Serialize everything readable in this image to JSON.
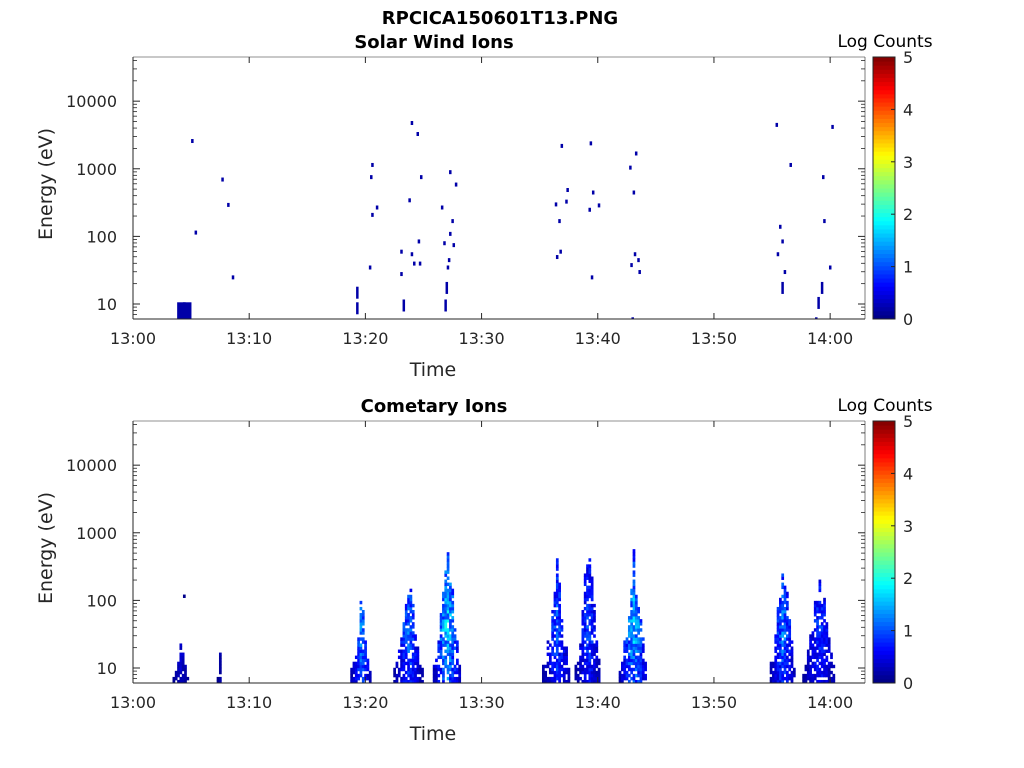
{
  "figure_title": "RPCICA150601T13.PNG",
  "chart_data": [
    {
      "type": "heatmap",
      "title": "Solar Wind Ions",
      "xlabel": "Time",
      "ylabel": "Energy (eV)",
      "x_ticks": [
        "13:00",
        "13:10",
        "13:20",
        "13:30",
        "13:40",
        "13:50",
        "14:00"
      ],
      "y_ticks": [
        "10",
        "100",
        "1000",
        "10000"
      ],
      "y_scale": "log",
      "y_range": [
        6,
        45000
      ],
      "x_range_minutes": [
        0,
        63
      ],
      "colorbar": {
        "label": "Log Counts",
        "ticks": [
          "0",
          "1",
          "2",
          "3",
          "4",
          "5"
        ],
        "range": [
          0,
          5
        ]
      },
      "cells": [
        [
          3.8,
          10,
          0.2
        ],
        [
          4.3,
          10,
          0.2
        ],
        [
          4.1,
          7,
          0.2
        ],
        [
          5.0,
          2600,
          0.2
        ],
        [
          5.3,
          115,
          0.2
        ],
        [
          7.6,
          700,
          0.2
        ],
        [
          8.1,
          295,
          0.2
        ],
        [
          8.5,
          25,
          0.2
        ],
        [
          19.2,
          17,
          0.2
        ],
        [
          19.2,
          10,
          0.2
        ],
        [
          20.3,
          35,
          0.2
        ],
        [
          20.4,
          760,
          0.2
        ],
        [
          20.5,
          1150,
          0.2
        ],
        [
          20.5,
          210,
          0.2
        ],
        [
          20.9,
          270,
          0.2
        ],
        [
          23.0,
          60,
          0.2
        ],
        [
          23.0,
          28,
          0.2
        ],
        [
          23.2,
          11,
          0.2
        ],
        [
          23.7,
          345,
          0.2
        ],
        [
          23.9,
          4800,
          0.2
        ],
        [
          23.9,
          55,
          0.2
        ],
        [
          24.1,
          40,
          0.2
        ],
        [
          24.4,
          3300,
          0.2
        ],
        [
          24.5,
          85,
          0.2
        ],
        [
          24.7,
          760,
          0.2
        ],
        [
          24.6,
          40,
          0.2
        ],
        [
          26.5,
          270,
          0.2
        ],
        [
          26.7,
          80,
          0.2
        ],
        [
          26.8,
          11,
          0.2
        ],
        [
          26.9,
          20,
          0.2
        ],
        [
          27.0,
          35,
          0.2
        ],
        [
          27.1,
          45,
          0.2
        ],
        [
          27.2,
          110,
          0.2
        ],
        [
          27.2,
          900,
          0.2
        ],
        [
          27.4,
          170,
          0.2
        ],
        [
          27.5,
          75,
          0.2
        ],
        [
          27.7,
          590,
          0.2
        ],
        [
          36.3,
          300,
          0.2
        ],
        [
          36.4,
          50,
          0.2
        ],
        [
          36.6,
          170,
          0.2
        ],
        [
          36.7,
          60,
          0.2
        ],
        [
          36.8,
          2200,
          0.2
        ],
        [
          37.2,
          330,
          0.2
        ],
        [
          37.3,
          490,
          0.2
        ],
        [
          39.3,
          2400,
          0.2
        ],
        [
          39.4,
          25,
          0.2
        ],
        [
          39.5,
          450,
          0.2
        ],
        [
          39.2,
          250,
          0.2
        ],
        [
          40.0,
          290,
          0.2
        ],
        [
          42.7,
          1050,
          0.2
        ],
        [
          42.8,
          38,
          0.2
        ],
        [
          42.9,
          6,
          0.2
        ],
        [
          43.0,
          450,
          0.2
        ],
        [
          43.1,
          55,
          0.2
        ],
        [
          43.2,
          1700,
          0.2
        ],
        [
          43.4,
          45,
          0.2
        ],
        [
          43.5,
          30,
          0.2
        ],
        [
          55.3,
          4500,
          0.2
        ],
        [
          55.4,
          55,
          0.2
        ],
        [
          55.6,
          140,
          0.2
        ],
        [
          55.8,
          85,
          0.2
        ],
        [
          55.8,
          20,
          0.2
        ],
        [
          56.0,
          30,
          0.2
        ],
        [
          56.5,
          1150,
          0.2
        ],
        [
          58.7,
          6,
          0.2
        ],
        [
          58.9,
          12,
          0.2
        ],
        [
          59.2,
          20,
          0.2
        ],
        [
          59.3,
          760,
          0.2
        ],
        [
          59.4,
          170,
          0.2
        ],
        [
          59.9,
          35,
          0.2
        ],
        [
          60.1,
          4200,
          0.2
        ]
      ]
    },
    {
      "type": "heatmap",
      "title": "Cometary Ions",
      "xlabel": "Time",
      "ylabel": "Energy (eV)",
      "x_ticks": [
        "13:00",
        "13:10",
        "13:20",
        "13:30",
        "13:40",
        "13:50",
        "14:00"
      ],
      "y_ticks": [
        "10",
        "100",
        "1000",
        "10000"
      ],
      "y_scale": "log",
      "y_range": [
        6,
        45000
      ],
      "x_range_minutes": [
        0,
        63
      ],
      "colorbar": {
        "label": "Log Counts",
        "ticks": [
          "0",
          "1",
          "2",
          "3",
          "4",
          "5"
        ],
        "range": [
          0,
          5
        ]
      },
      "bursts": [
        {
          "t": [
            3.4,
            4.7
          ],
          "e": [
            6,
            22
          ],
          "peak": 0.6
        },
        {
          "t": [
            4.3,
            4.5
          ],
          "e": [
            110,
            130
          ],
          "peak": 0.3
        },
        {
          "t": [
            7.2,
            7.6
          ],
          "e": [
            6,
            17
          ],
          "peak": 0.3
        },
        {
          "t": [
            18.7,
            20.4
          ],
          "e": [
            6,
            100
          ],
          "peak": 1.6
        },
        {
          "t": [
            22.4,
            24.8
          ],
          "e": [
            6,
            330
          ],
          "peak": 1.4
        },
        {
          "t": [
            25.8,
            28.1
          ],
          "e": [
            6,
            800
          ],
          "peak": 2.1
        },
        {
          "t": [
            35.2,
            37.6
          ],
          "e": [
            6,
            360
          ],
          "peak": 1.3
        },
        {
          "t": [
            38.0,
            40.2
          ],
          "e": [
            6,
            600
          ],
          "peak": 1.2
        },
        {
          "t": [
            41.8,
            44.2
          ],
          "e": [
            6,
            500
          ],
          "peak": 1.9
        },
        {
          "t": [
            54.8,
            56.9
          ],
          "e": [
            6,
            550
          ],
          "peak": 1.5
        },
        {
          "t": [
            57.6,
            60.4
          ],
          "e": [
            6,
            250
          ],
          "peak": 1.1
        }
      ]
    }
  ]
}
